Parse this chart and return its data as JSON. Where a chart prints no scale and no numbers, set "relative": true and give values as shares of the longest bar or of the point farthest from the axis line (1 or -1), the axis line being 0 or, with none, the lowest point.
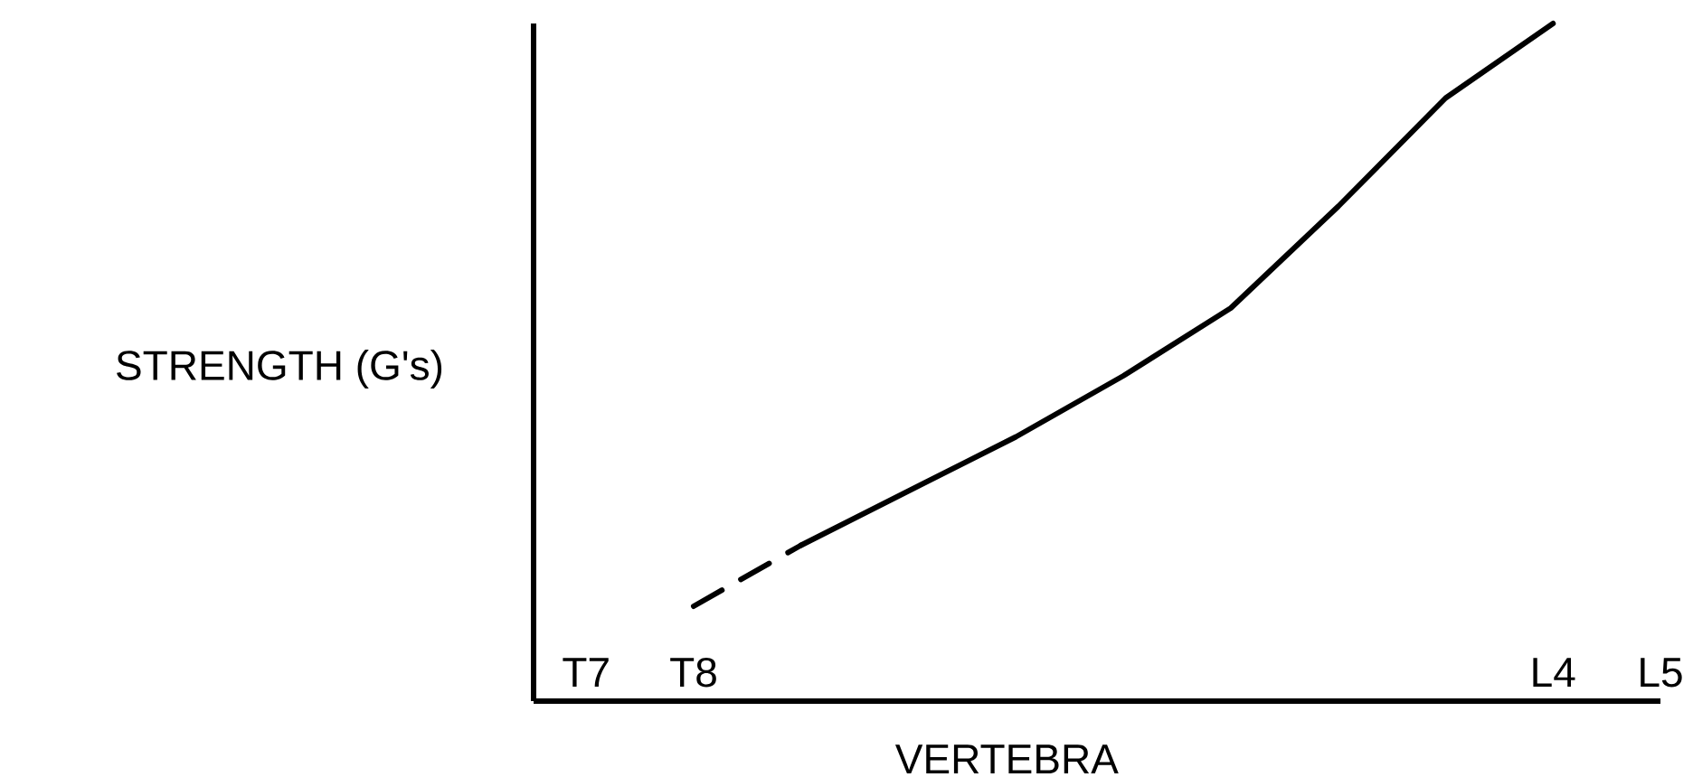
{
  "chart_data": {
    "type": "line",
    "ylabel": "STRENGTH (G's)",
    "xlabel": "VERTEBRA",
    "categories": [
      "T7",
      "T8",
      null,
      null,
      null,
      null,
      null,
      null,
      null,
      "L4",
      "L5"
    ],
    "relative": true,
    "marker": "none",
    "series": [
      {
        "color": "#000000",
        "line_style": "dashed",
        "values": [
          null,
          0.14,
          0.23,
          null,
          null,
          null,
          null,
          null,
          null,
          null,
          null
        ]
      },
      {
        "color": "#000000",
        "line_style": "solid",
        "values": [
          null,
          null,
          0.23,
          0.31,
          0.39,
          0.48,
          0.58,
          0.73,
          0.89,
          1.0,
          null
        ]
      }
    ]
  }
}
